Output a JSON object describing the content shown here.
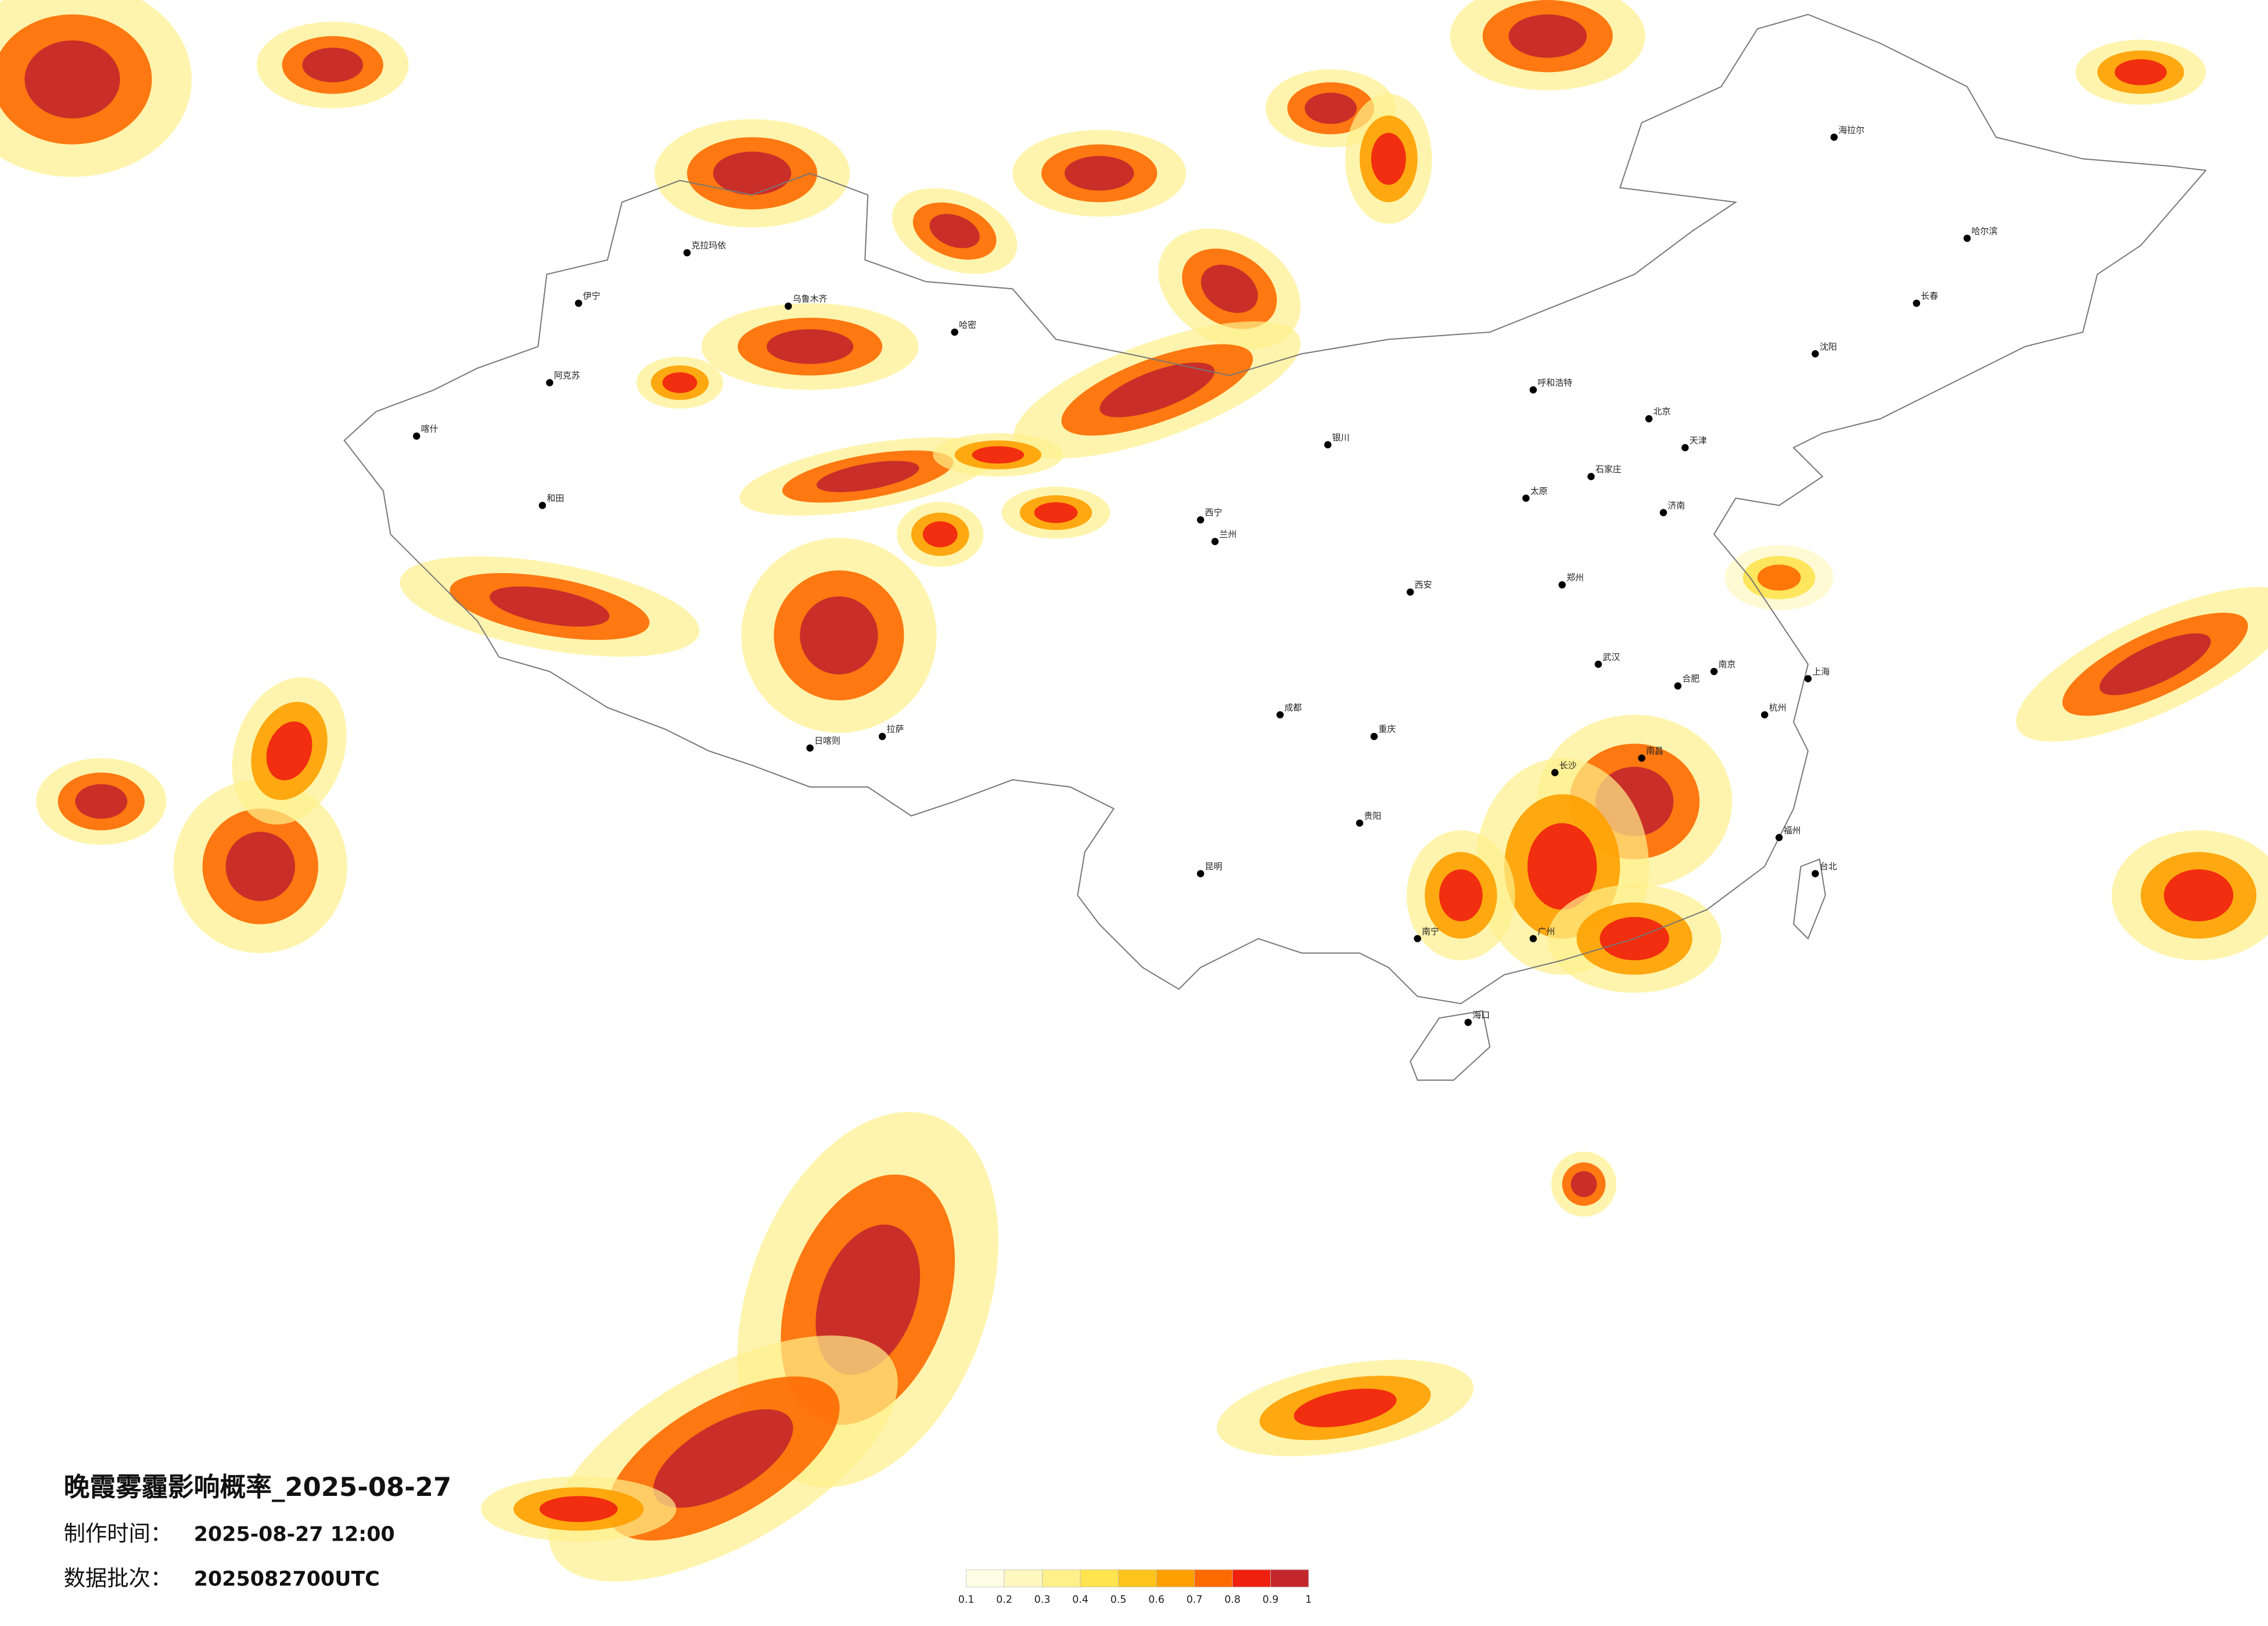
{
  "header": {
    "title": "晚霞雾霾影响概率_2025-08-27",
    "made_label": "制作时间：",
    "made_time": "2025-08-27 12:00",
    "batch_label": "数据批次：",
    "batch": "2025082700UTC"
  },
  "legend": {
    "ticks": [
      0.1,
      0.2,
      0.3,
      0.4,
      0.5,
      0.6,
      0.7,
      0.8,
      0.9,
      1
    ],
    "colors": [
      "#fffde6",
      "#fff8c0",
      "#fff08a",
      "#ffe34f",
      "#ffc41a",
      "#ffa000",
      "#ff6a00",
      "#f0200f",
      "#c3272b"
    ]
  },
  "cities": [
    "乌鲁木齐",
    "克拉玛依",
    "伊宁",
    "阿克苏",
    "喀什",
    "和田",
    "哈密",
    "拉萨",
    "日喀则",
    "西宁",
    "兰州",
    "银川",
    "呼和浩特",
    "北京",
    "天津",
    "石家庄",
    "太原",
    "济南",
    "郑州",
    "西安",
    "成都",
    "重庆",
    "昆明",
    "贵阳",
    "南宁",
    "广州",
    "长沙",
    "武汉",
    "南昌",
    "福州",
    "杭州",
    "上海",
    "南京",
    "合肥",
    "沈阳",
    "长春",
    "哈尔滨",
    "海口",
    "台北",
    "海拉尔"
  ]
}
